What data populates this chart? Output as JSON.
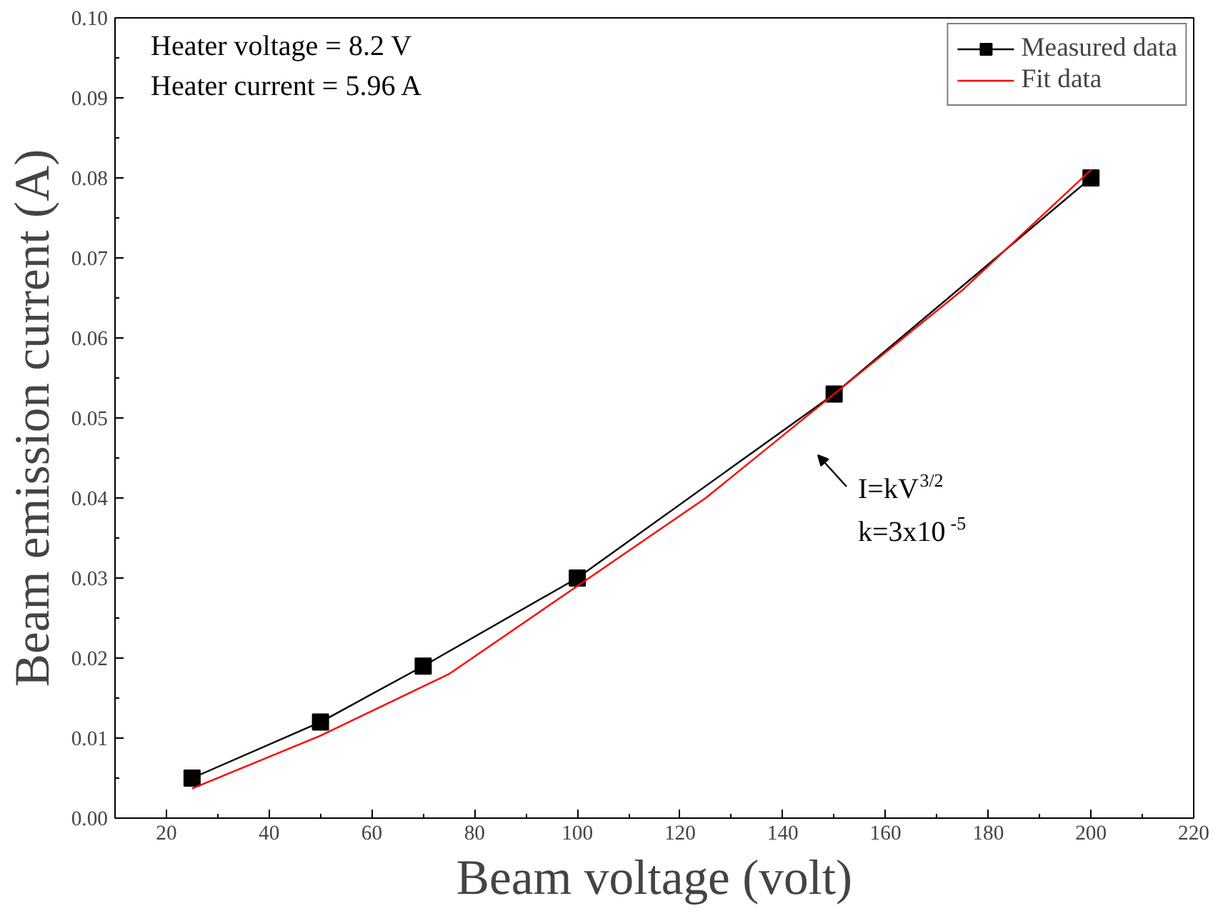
{
  "chart_data": {
    "type": "line",
    "xlabel": "Beam voltage (volt)",
    "ylabel": "Beam emission current (A)",
    "xlim": [
      10,
      220
    ],
    "xticks": [
      20,
      40,
      60,
      80,
      100,
      120,
      140,
      160,
      180,
      200,
      220
    ],
    "ylim": [
      0,
      0.1
    ],
    "yticks": [
      {
        "value": 0,
        "label": "0.00"
      },
      {
        "value": 0.01,
        "label": "0.01"
      },
      {
        "value": 0.02,
        "label": "0.02"
      },
      {
        "value": 0.03,
        "label": "0.03"
      },
      {
        "value": 0.04,
        "label": "0.04"
      },
      {
        "value": 0.05,
        "label": "0.05"
      },
      {
        "value": 0.06,
        "label": "0.06"
      },
      {
        "value": 0.07,
        "label": "0.07"
      },
      {
        "value": 0.08,
        "label": "0.08"
      },
      {
        "value": 0.09,
        "label": "0.09"
      },
      {
        "value": 0.1,
        "label": "0.10"
      }
    ],
    "grid": false,
    "legend": "top right",
    "series": [
      {
        "name": "Measured data",
        "color": "#000000",
        "marker": "square",
        "x": [
          25,
          50,
          70,
          100,
          150,
          200
        ],
        "values": [
          0.005,
          0.012,
          0.019,
          0.03,
          0.053,
          0.08
        ]
      },
      {
        "name": "Fit data",
        "color": "#ff0000",
        "marker": "none",
        "x": [
          25,
          50,
          75,
          100,
          125,
          150,
          175,
          200
        ],
        "values": [
          0.0037,
          0.0103,
          0.018,
          0.029,
          0.04,
          0.053,
          0.066,
          0.081
        ]
      }
    ],
    "annotations": [
      "Heater voltage = 8.2 V",
      "Heater current = 5.96 A",
      "I=kV$^{3/2}$",
      "k=3x10$^{-5}$"
    ]
  }
}
